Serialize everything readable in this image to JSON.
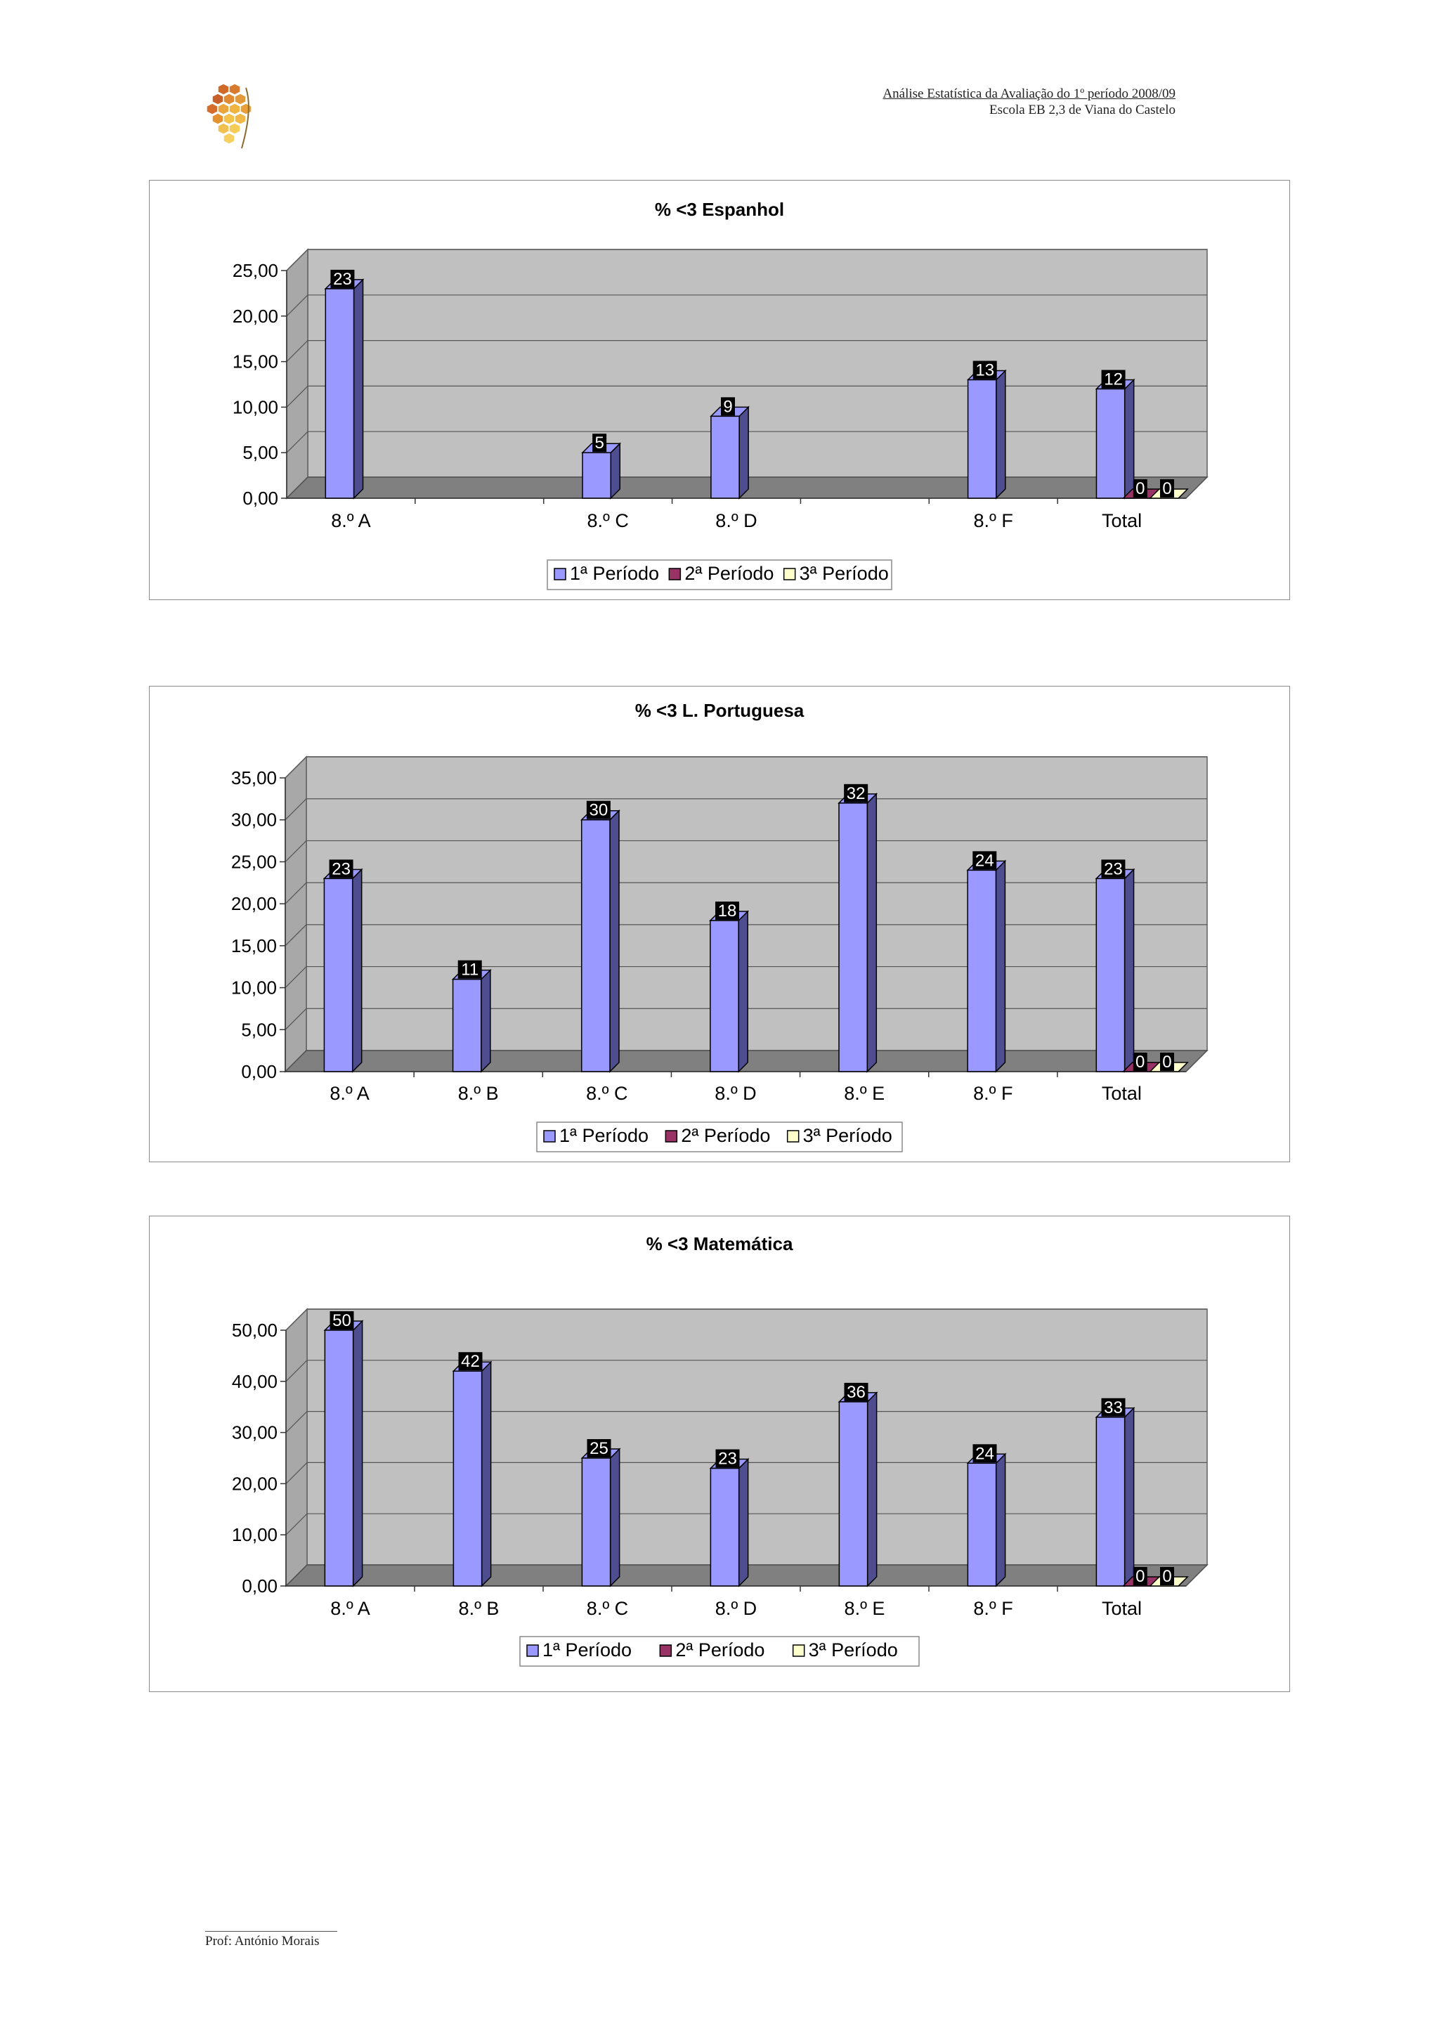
{
  "header": {
    "line1": "Análise Estatística da Avaliação do 1º período 2008/09",
    "line2": "Escola EB 2,3 de Viana do Castelo"
  },
  "footer": {
    "author": "Prof: António Morais"
  },
  "colors": {
    "series1_front": "#9999FF",
    "series1_side": "#4D4D8F",
    "series2": "#993366",
    "series3": "#FFFFCC",
    "wall": "#C0C0C0",
    "floor": "#808080",
    "label_bg": "#000000",
    "label_text": "#FFFFFF"
  },
  "chart_data": [
    {
      "type": "bar",
      "title": "%  <3 Espanhol",
      "categories": [
        "8.º A",
        "8.º C",
        "8.º D",
        "8.º F",
        "Total"
      ],
      "category_slots": [
        0,
        2,
        3,
        5,
        6
      ],
      "slot_count": 7,
      "ylim": [
        0,
        25
      ],
      "ytick_step": 5,
      "ytick_labels": [
        "0,00",
        "5,00",
        "10,00",
        "15,00",
        "20,00",
        "25,00"
      ],
      "series": [
        {
          "name": "1ª Período",
          "values": [
            23,
            5,
            9,
            13,
            12
          ],
          "labels": [
            "23",
            "5",
            "9",
            "13",
            "12"
          ]
        },
        {
          "name": "2ª Período",
          "values": [
            null,
            null,
            null,
            null,
            0
          ],
          "labels": [
            "",
            "",
            "",
            "",
            "0"
          ]
        },
        {
          "name": "3ª Período",
          "values": [
            null,
            null,
            null,
            null,
            0
          ],
          "labels": [
            "",
            "",
            "",
            "",
            "0"
          ]
        }
      ],
      "legend": "bottom",
      "grid": true
    },
    {
      "type": "bar",
      "title": "%  <3 L. Portuguesa",
      "categories": [
        "8.º A",
        "8.º B",
        "8.º C",
        "8.º D",
        "8.º E",
        "8.º F",
        "Total"
      ],
      "category_slots": [
        0,
        1,
        2,
        3,
        4,
        5,
        6
      ],
      "slot_count": 7,
      "ylim": [
        0,
        35
      ],
      "ytick_step": 5,
      "ytick_labels": [
        "0,00",
        "5,00",
        "10,00",
        "15,00",
        "20,00",
        "25,00",
        "30,00",
        "35,00"
      ],
      "series": [
        {
          "name": "1ª Período",
          "values": [
            23,
            11,
            30,
            18,
            32,
            24,
            23
          ],
          "labels": [
            "23",
            "11",
            "30",
            "18",
            "32",
            "24",
            "23"
          ]
        },
        {
          "name": "2ª Período",
          "values": [
            null,
            null,
            null,
            null,
            null,
            null,
            0
          ],
          "labels": [
            "",
            "",
            "",
            "",
            "",
            "",
            "0"
          ]
        },
        {
          "name": "3ª Período",
          "values": [
            null,
            null,
            null,
            null,
            null,
            null,
            0
          ],
          "labels": [
            "",
            "",
            "",
            "",
            "",
            "",
            "0"
          ]
        }
      ],
      "legend": "bottom",
      "grid": true
    },
    {
      "type": "bar",
      "title": "%  <3 Matemática",
      "categories": [
        "8.º A",
        "8.º B",
        "8.º C",
        "8.º D",
        "8.º E",
        "8.º F",
        "Total"
      ],
      "category_slots": [
        0,
        1,
        2,
        3,
        4,
        5,
        6
      ],
      "slot_count": 7,
      "ylim": [
        0,
        50
      ],
      "ytick_step": 10,
      "ytick_labels": [
        "0,00",
        "10,00",
        "20,00",
        "30,00",
        "40,00",
        "50,00"
      ],
      "series": [
        {
          "name": "1ª Período",
          "values": [
            50,
            42,
            25,
            23,
            36,
            24,
            33
          ],
          "labels": [
            "50",
            "42",
            "25",
            "23",
            "36",
            "24",
            "33"
          ]
        },
        {
          "name": "2ª Período",
          "values": [
            null,
            null,
            null,
            null,
            null,
            null,
            0
          ],
          "labels": [
            "",
            "",
            "",
            "",
            "",
            "",
            "0"
          ]
        },
        {
          "name": "3ª Período",
          "values": [
            null,
            null,
            null,
            null,
            null,
            null,
            0
          ],
          "labels": [
            "",
            "",
            "",
            "",
            "",
            "",
            "0"
          ]
        }
      ],
      "legend": "bottom",
      "grid": true
    }
  ]
}
